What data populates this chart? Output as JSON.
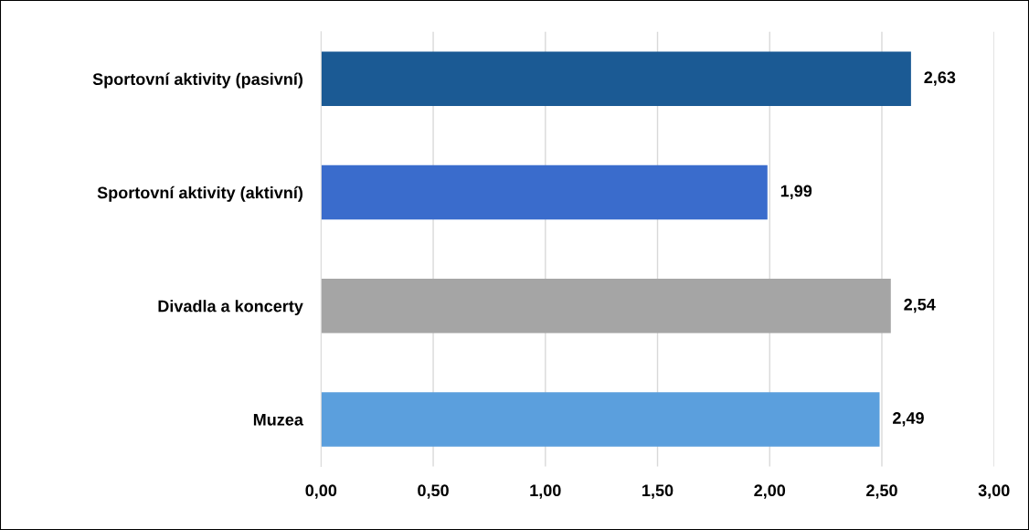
{
  "chart_data": {
    "type": "bar",
    "orientation": "horizontal",
    "categories": [
      "Sportovní aktivity (pasivní)",
      "Sportovní aktivity (aktivní)",
      "Divadla a koncerty",
      "Muzea"
    ],
    "values": [
      2.63,
      1.99,
      2.54,
      2.49
    ],
    "colors": [
      "#1b5a94",
      "#3a6ccc",
      "#a5a5a5",
      "#5b9fdd"
    ],
    "value_labels": [
      "2,63",
      "1,99",
      "2,54",
      "2,49"
    ],
    "xlim": [
      0,
      3
    ],
    "xticks": [
      {
        "value": 0,
        "label": "0,00"
      },
      {
        "value": 0.5,
        "label": "0,50"
      },
      {
        "value": 1,
        "label": "1,00"
      },
      {
        "value": 1.5,
        "label": "1,50"
      },
      {
        "value": 2,
        "label": "2,00"
      },
      {
        "value": 2.5,
        "label": "2,50"
      },
      {
        "value": 3,
        "label": "3,00"
      }
    ],
    "grid": "x"
  }
}
